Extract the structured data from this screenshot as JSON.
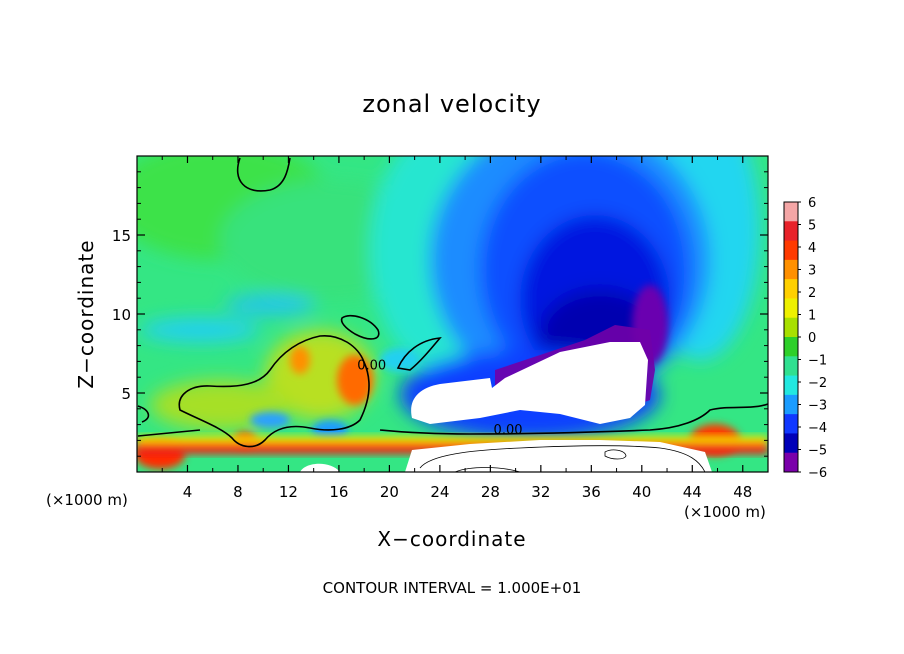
{
  "chart_data": {
    "type": "heatmap",
    "title": "zonal velocity",
    "xlabel": "X−coordinate",
    "ylabel": "Z−coordinate",
    "x_unit_left": "(×1000 m)",
    "x_unit_right": "(×1000 m)",
    "footer": "CONTOUR INTERVAL = 1.000E+01",
    "xlim": [
      0,
      50
    ],
    "ylim": [
      0,
      20
    ],
    "x_ticks": [
      4,
      8,
      12,
      16,
      20,
      24,
      28,
      32,
      36,
      40,
      44,
      48
    ],
    "x_tick_labels": [
      "4",
      "8",
      "12",
      "16",
      "20",
      "24",
      "28",
      "32",
      "36",
      "40",
      "44",
      "48"
    ],
    "y_ticks": [
      5,
      10,
      15
    ],
    "y_tick_labels": [
      "5",
      "10",
      "15"
    ],
    "contour_labels": [
      {
        "text": "0.00",
        "x": 18.6,
        "y": 6.5
      },
      {
        "text": "0.00",
        "x": 29.4,
        "y": 2.4
      }
    ],
    "colorbar": {
      "levels": [
        6,
        5,
        4,
        3,
        2,
        1,
        0,
        -1,
        -2,
        -3,
        -4,
        -5,
        -6
      ],
      "labels": [
        "6",
        "5",
        "4",
        "3",
        "2",
        "1",
        "0",
        "−1",
        "−2",
        "−3",
        "−4",
        "−5",
        "−6"
      ],
      "colors": [
        "#f4a6a6",
        "#e8222a",
        "#ff3a00",
        "#ff9000",
        "#ffd000",
        "#eef000",
        "#a8e000",
        "#2ed02a",
        "#30e090",
        "#22e8e0",
        "#1a9cff",
        "#1038ff",
        "#0000b8",
        "#7a00aa"
      ]
    }
  }
}
